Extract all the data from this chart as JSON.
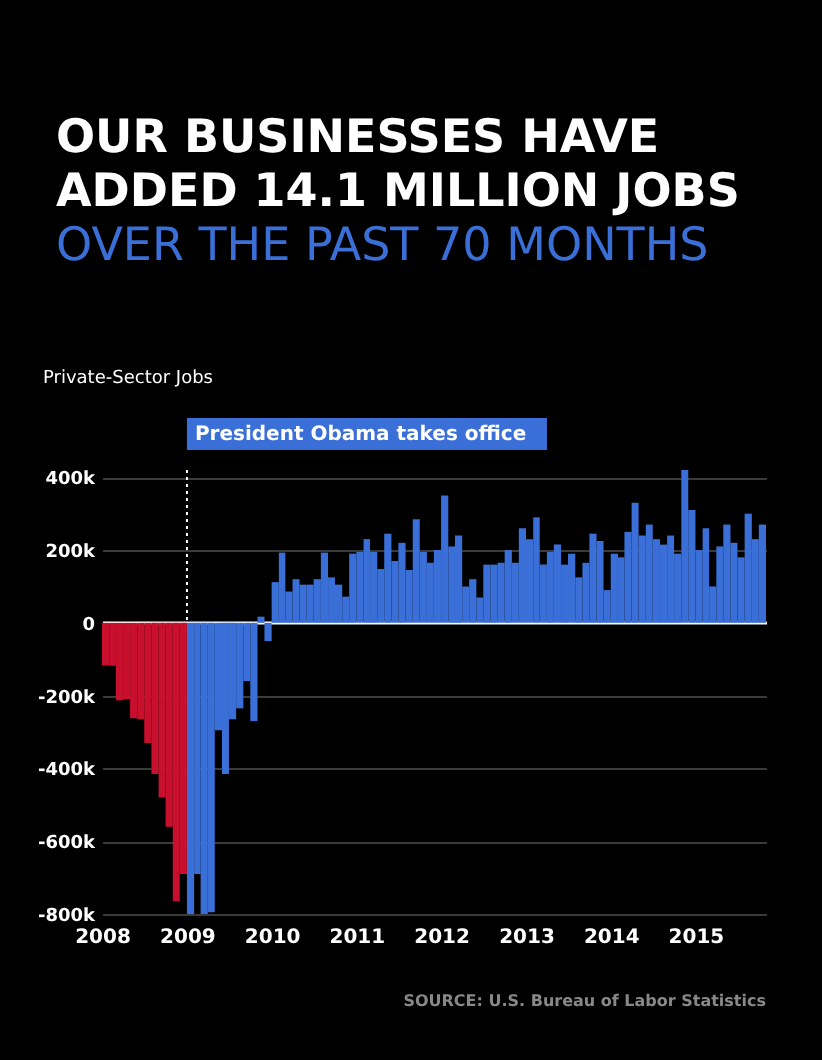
{
  "chart_data": {
    "type": "bar",
    "title": "OUR BUSINESSES HAVE ADDED 14.1 MILLION JOBS",
    "subtitle": "OVER THE PAST 70 MONTHS",
    "ylabel": "Private-Sector Jobs",
    "x": [
      "2008-01",
      "2008-02",
      "2008-03",
      "2008-04",
      "2008-05",
      "2008-06",
      "2008-07",
      "2008-08",
      "2008-09",
      "2008-10",
      "2008-11",
      "2008-12",
      "2009-01",
      "2009-02",
      "2009-03",
      "2009-04",
      "2009-05",
      "2009-06",
      "2009-07",
      "2009-08",
      "2009-09",
      "2009-10",
      "2009-11",
      "2009-12",
      "2010-01",
      "2010-02",
      "2010-03",
      "2010-04",
      "2010-05",
      "2010-06",
      "2010-07",
      "2010-08",
      "2010-09",
      "2010-10",
      "2010-11",
      "2010-12",
      "2011-01",
      "2011-02",
      "2011-03",
      "2011-04",
      "2011-05",
      "2011-06",
      "2011-07",
      "2011-08",
      "2011-09",
      "2011-10",
      "2011-11",
      "2011-12",
      "2012-01",
      "2012-02",
      "2012-03",
      "2012-04",
      "2012-05",
      "2012-06",
      "2012-07",
      "2012-08",
      "2012-09",
      "2012-10",
      "2012-11",
      "2012-12",
      "2013-01",
      "2013-02",
      "2013-03",
      "2013-04",
      "2013-05",
      "2013-06",
      "2013-07",
      "2013-08",
      "2013-09",
      "2013-10",
      "2013-11",
      "2013-12",
      "2014-01",
      "2014-02",
      "2014-03",
      "2014-04",
      "2014-05",
      "2014-06",
      "2014-07",
      "2014-08",
      "2014-09",
      "2014-10",
      "2014-11",
      "2014-12",
      "2015-01",
      "2015-02",
      "2015-03",
      "2015-04",
      "2015-05",
      "2015-06",
      "2015-07",
      "2015-08",
      "2015-09",
      "2015-10"
    ],
    "values": [
      -117,
      -118,
      -213,
      -210,
      -262,
      -265,
      -330,
      -415,
      -480,
      -560,
      -765,
      -690,
      -800,
      -690,
      -800,
      -795,
      -295,
      -415,
      -265,
      -235,
      -160,
      -270,
      17,
      -50,
      112,
      193,
      86,
      120,
      105,
      105,
      120,
      193,
      125,
      105,
      72,
      190,
      195,
      230,
      195,
      148,
      245,
      170,
      220,
      145,
      285,
      195,
      165,
      200,
      350,
      210,
      240,
      100,
      120,
      70,
      160,
      160,
      165,
      200,
      165,
      260,
      230,
      290,
      160,
      195,
      215,
      160,
      190,
      125,
      165,
      245,
      225,
      90,
      190,
      180,
      250,
      330,
      240,
      270,
      230,
      215,
      240,
      190,
      420,
      310,
      200,
      260,
      100,
      210,
      270,
      220,
      180,
      300,
      230,
      270
    ],
    "colors": [
      "#c8102e",
      "#c8102e",
      "#c8102e",
      "#c8102e",
      "#c8102e",
      "#c8102e",
      "#c8102e",
      "#c8102e",
      "#c8102e",
      "#c8102e",
      "#c8102e",
      "#c8102e",
      "#3b6fd8",
      "#3b6fd8",
      "#3b6fd8",
      "#3b6fd8",
      "#3b6fd8",
      "#3b6fd8",
      "#3b6fd8",
      "#3b6fd8",
      "#3b6fd8",
      "#3b6fd8",
      "#3b6fd8",
      "#3b6fd8",
      "#3b6fd8",
      "#3b6fd8",
      "#3b6fd8",
      "#3b6fd8",
      "#3b6fd8",
      "#3b6fd8",
      "#3b6fd8",
      "#3b6fd8",
      "#3b6fd8",
      "#3b6fd8",
      "#3b6fd8",
      "#3b6fd8",
      "#3b6fd8",
      "#3b6fd8",
      "#3b6fd8",
      "#3b6fd8",
      "#3b6fd8",
      "#3b6fd8",
      "#3b6fd8",
      "#3b6fd8",
      "#3b6fd8",
      "#3b6fd8",
      "#3b6fd8",
      "#3b6fd8",
      "#3b6fd8",
      "#3b6fd8",
      "#3b6fd8",
      "#3b6fd8",
      "#3b6fd8",
      "#3b6fd8",
      "#3b6fd8",
      "#3b6fd8",
      "#3b6fd8",
      "#3b6fd8",
      "#3b6fd8",
      "#3b6fd8",
      "#3b6fd8",
      "#3b6fd8",
      "#3b6fd8",
      "#3b6fd8",
      "#3b6fd8",
      "#3b6fd8",
      "#3b6fd8",
      "#3b6fd8",
      "#3b6fd8",
      "#3b6fd8",
      "#3b6fd8",
      "#3b6fd8",
      "#3b6fd8",
      "#3b6fd8",
      "#3b6fd8",
      "#3b6fd8",
      "#3b6fd8",
      "#3b6fd8",
      "#3b6fd8",
      "#3b6fd8",
      "#3b6fd8",
      "#3b6fd8",
      "#3b6fd8",
      "#3b6fd8",
      "#3b6fd8",
      "#3b6fd8",
      "#3b6fd8",
      "#3b6fd8",
      "#3b6fd8",
      "#3b6fd8",
      "#3b6fd8",
      "#3b6fd8",
      "#3b6fd8",
      "#3b6fd8"
    ],
    "xlim": [
      "2008-01",
      "2015-11"
    ],
    "xticks": [
      "2008",
      "2009",
      "2010",
      "2011",
      "2012",
      "2013",
      "2014",
      "2015"
    ],
    "ylim": [
      -800,
      420
    ],
    "yticks": [
      {
        "value": 400,
        "label": "400k"
      },
      {
        "value": 200,
        "label": "200k"
      },
      0,
      {
        "value": -200,
        "label": "-200k"
      },
      {
        "value": -400,
        "label": "-400k"
      },
      {
        "value": -600,
        "label": "-600k"
      },
      {
        "value": -800,
        "label": "-800k"
      }
    ],
    "grid": "y",
    "ref_lines": [
      {
        "axis": "x",
        "value": "2009-01",
        "label": "President Obama takes office",
        "color": "#ffffff",
        "line_style": "dotted"
      }
    ],
    "annotations": [
      "SOURCE: U.S. Bureau of Labor Statistics"
    ]
  }
}
